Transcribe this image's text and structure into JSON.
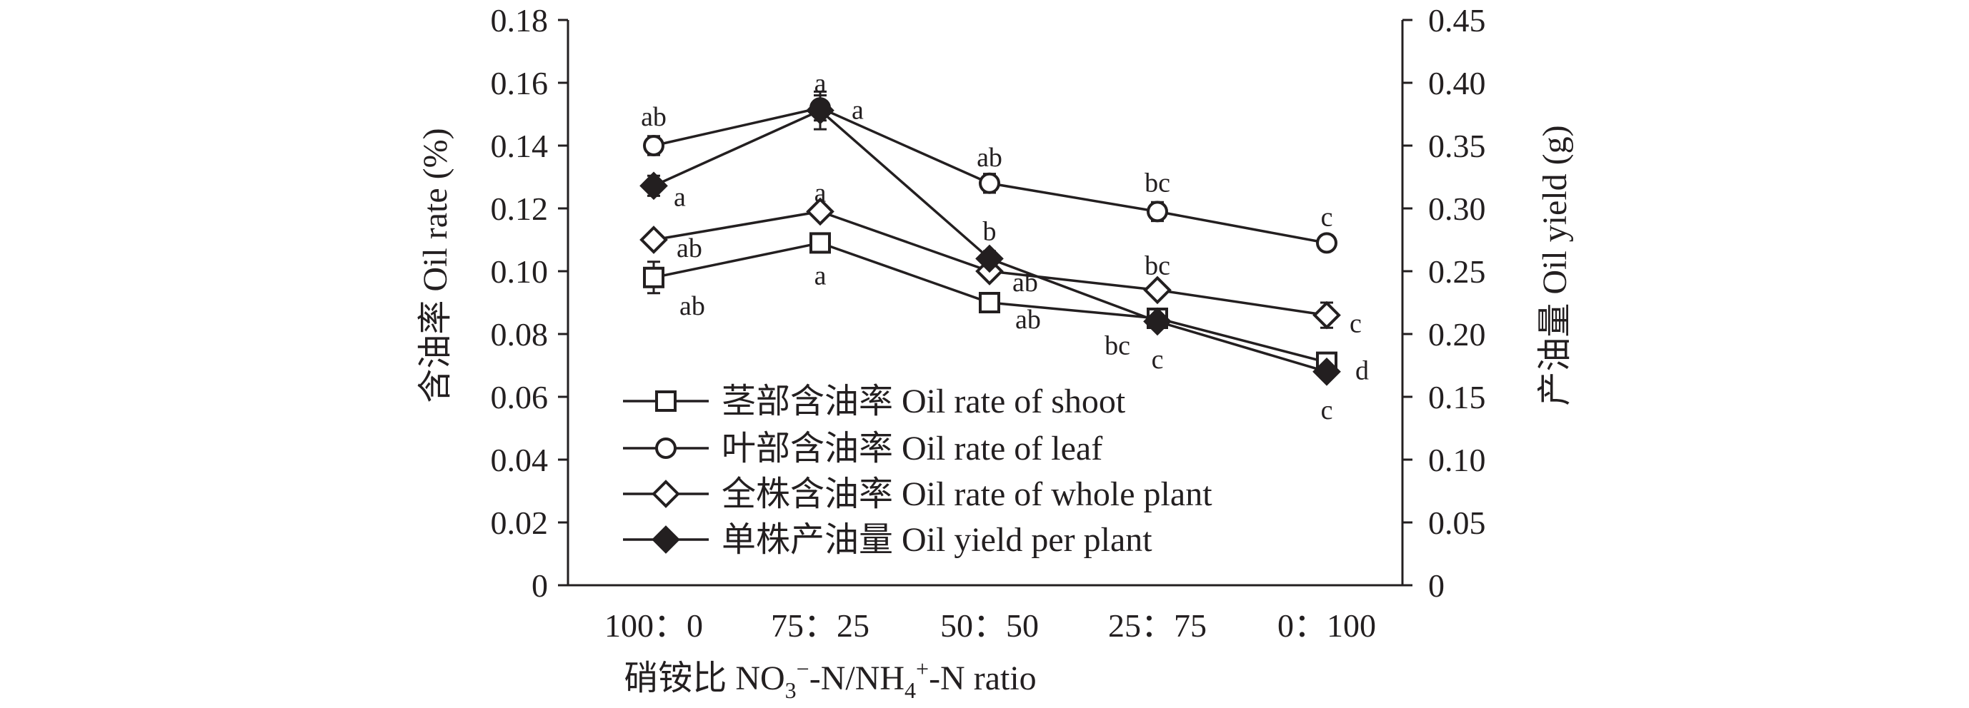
{
  "chart_data": {
    "type": "line",
    "xlabel": "硝铵比 NO3−-N/NH4+-N ratio",
    "xlabel_parts": [
      "硝铵比 NO",
      "3",
      "−",
      "-N/NH",
      "4",
      "+",
      "-N ratio"
    ],
    "ylabel_left": "含油率 Oil rate (%)",
    "ylabel_right": "产油量 Oil yield (g)",
    "categories": [
      "100：0",
      "75：25",
      "50：50",
      "25：75",
      "0：100"
    ],
    "ylim_left": [
      0,
      0.18
    ],
    "ylim_right": [
      0,
      0.45
    ],
    "yticks_left": [
      "0",
      "0.02",
      "0.04",
      "0.06",
      "0.08",
      "0.10",
      "0.12",
      "0.14",
      "0.16",
      "0.18"
    ],
    "yticks_right": [
      "0",
      "0.05",
      "0.10",
      "0.15",
      "0.20",
      "0.25",
      "0.30",
      "0.35",
      "0.40",
      "0.45"
    ],
    "legend_position": "inside-lower-left",
    "series": [
      {
        "name": "茎部含油率 Oil rate of shoot",
        "axis": "left",
        "marker": "square-open",
        "values": [
          0.098,
          0.109,
          0.09,
          0.085,
          0.071
        ],
        "errors": [
          0.005,
          0.003,
          0.002,
          0.002,
          0.002
        ],
        "labels": [
          "ab",
          "a",
          "ab",
          "c",
          "d"
        ]
      },
      {
        "name": "叶部含油率 Oil rate of leaf",
        "axis": "left",
        "marker": "circle-open",
        "values": [
          0.14,
          0.152,
          0.128,
          0.119,
          0.109
        ],
        "errors": [
          0.003,
          0.004,
          0.003,
          0.003,
          0.002
        ],
        "labels": [
          "ab",
          "a",
          "ab",
          "bc",
          "c"
        ]
      },
      {
        "name": "全株含油率 Oil rate of whole plant",
        "axis": "left",
        "marker": "diamond-open",
        "values": [
          0.11,
          0.119,
          0.1,
          0.094,
          0.086
        ],
        "errors": [
          0.002,
          0.002,
          0.002,
          0.002,
          0.004
        ],
        "labels": [
          "ab",
          "a",
          "ab",
          "bc",
          "c"
        ]
      },
      {
        "name": "单株产油量 Oil yield per plant",
        "axis": "right",
        "marker": "diamond-filled",
        "values": [
          0.318,
          0.378,
          0.26,
          0.21,
          0.17
        ],
        "errors": [
          0.008,
          0.015,
          0.006,
          0.004,
          0.004
        ],
        "labels": [
          "a",
          "a",
          "b",
          "bc",
          "c"
        ]
      }
    ]
  }
}
